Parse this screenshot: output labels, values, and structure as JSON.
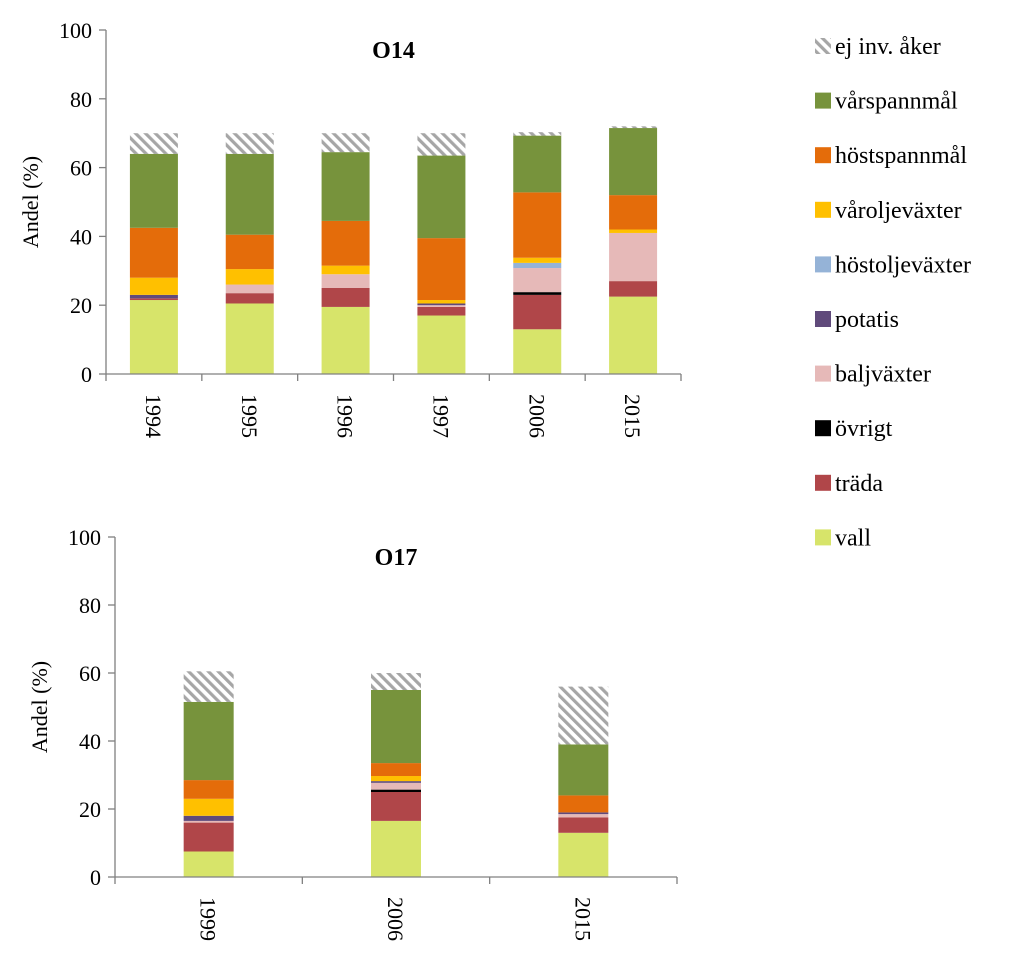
{
  "legend": {
    "position": "right",
    "items": [
      {
        "key": "ej_inv_aker",
        "label": "ej inv. åker",
        "color": "#a6a6a6",
        "pattern": "hatch"
      },
      {
        "key": "varspannmal",
        "label": "vårspannmål",
        "color": "#77933c"
      },
      {
        "key": "hostspannmal",
        "label": "höstspannmål",
        "color": "#e46c0a"
      },
      {
        "key": "varoljevaxter",
        "label": "våroljeväxter",
        "color": "#ffc000"
      },
      {
        "key": "hostoljevaxter",
        "label": "höstoljeväxter",
        "color": "#95b3d7"
      },
      {
        "key": "potatis",
        "label": "potatis",
        "color": "#604a7b"
      },
      {
        "key": "baljvaxter",
        "label": "baljväxter",
        "color": "#e6b9b8"
      },
      {
        "key": "ovrigt",
        "label": "övrigt",
        "color": "#000000"
      },
      {
        "key": "trada",
        "label": "träda",
        "color": "#b04649"
      },
      {
        "key": "vall",
        "label": "vall",
        "color": "#d7e46a"
      }
    ]
  },
  "chart_data": [
    {
      "type": "bar",
      "stacked": true,
      "title": "O14",
      "ylabel": "Andel (%)",
      "ylim": [
        0,
        100
      ],
      "yticks": [
        0,
        20,
        40,
        60,
        80,
        100
      ],
      "categories": [
        "1994",
        "1995",
        "1996",
        "1997",
        "2006",
        "2015"
      ],
      "series": [
        {
          "key": "vall",
          "values": [
            21.5,
            20.5,
            19.5,
            17.0,
            13.0,
            22.5
          ]
        },
        {
          "key": "trada",
          "values": [
            0.5,
            3.0,
            5.5,
            2.5,
            10.0,
            4.5
          ]
        },
        {
          "key": "ovrigt",
          "values": [
            0,
            0,
            0,
            0,
            0.8,
            0
          ]
        },
        {
          "key": "baljvaxter",
          "values": [
            0,
            2.5,
            4.0,
            0.5,
            7.0,
            14.0
          ]
        },
        {
          "key": "potatis",
          "values": [
            1.0,
            0,
            0,
            0.5,
            0,
            0
          ]
        },
        {
          "key": "hostoljevaxter",
          "values": [
            0,
            0,
            0,
            0,
            1.5,
            0
          ]
        },
        {
          "key": "varoljevaxter",
          "values": [
            5.0,
            4.5,
            2.5,
            1.0,
            1.5,
            1.0
          ]
        },
        {
          "key": "hostspannmal",
          "values": [
            14.5,
            10.0,
            13.0,
            18.0,
            19.0,
            10.0
          ]
        },
        {
          "key": "varspannmal",
          "values": [
            21.5,
            23.5,
            20.0,
            24.0,
            16.5,
            19.5
          ]
        },
        {
          "key": "ej_inv_aker",
          "values": [
            6.0,
            6.0,
            5.5,
            6.5,
            1.0,
            0.5
          ]
        }
      ]
    },
    {
      "type": "bar",
      "stacked": true,
      "title": "O17",
      "ylabel": "Andel (%)",
      "ylim": [
        0,
        100
      ],
      "yticks": [
        0,
        20,
        40,
        60,
        80,
        100
      ],
      "categories": [
        "1999",
        "2006",
        "2015"
      ],
      "series": [
        {
          "key": "vall",
          "values": [
            7.5,
            16.5,
            13.0
          ]
        },
        {
          "key": "trada",
          "values": [
            8.5,
            8.5,
            4.5
          ]
        },
        {
          "key": "ovrigt",
          "values": [
            0,
            0.7,
            0
          ]
        },
        {
          "key": "baljvaxter",
          "values": [
            0.5,
            2.0,
            1.0
          ]
        },
        {
          "key": "potatis",
          "values": [
            1.5,
            0.5,
            0.5
          ]
        },
        {
          "key": "hostoljevaxter",
          "values": [
            0,
            0,
            0
          ]
        },
        {
          "key": "varoljevaxter",
          "values": [
            5.0,
            1.5,
            0
          ]
        },
        {
          "key": "hostspannmal",
          "values": [
            5.5,
            3.8,
            5.0
          ]
        },
        {
          "key": "varspannmal",
          "values": [
            23.0,
            21.5,
            15.0
          ]
        },
        {
          "key": "ej_inv_aker",
          "values": [
            9.0,
            5.0,
            17.0
          ]
        }
      ]
    }
  ]
}
